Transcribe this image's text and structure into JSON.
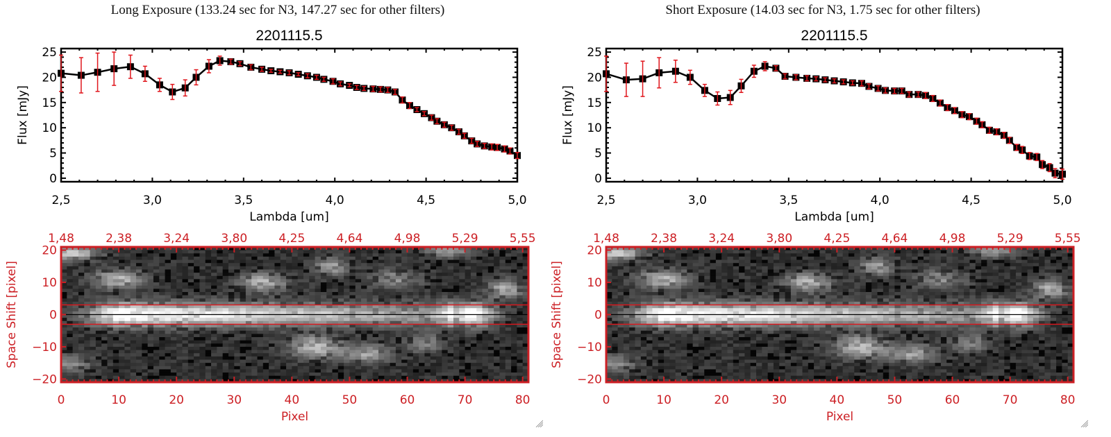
{
  "panels": [
    {
      "id": "long",
      "exposure_title": "Long Exposure (133.24 sec for N3, 147.27 sec for other filters)",
      "spectrum": {
        "title": "2201115.5",
        "xlabel": "Lambda [um]",
        "ylabel": "Flux [mJy]"
      },
      "image": {
        "xlabel": "Pixel",
        "ylabel": "Space Shift [pixel]"
      }
    },
    {
      "id": "short",
      "exposure_title": "Short Exposure (14.03 sec for N3, 1.75 sec for other filters)",
      "spectrum": {
        "title": "2201115.5",
        "xlabel": "Lambda [um]",
        "ylabel": "Flux [mJy]"
      },
      "image": {
        "xlabel": "Pixel",
        "ylabel": "Space Shift [pixel]"
      }
    }
  ],
  "colors": {
    "axis": "#000000",
    "errorbar": "#e0151b",
    "image_axis": "#cc1f24",
    "aperture_line": "#e0151b",
    "center_line": "#000000"
  },
  "chart_data": [
    {
      "type": "line",
      "title": "2201115.5",
      "panel": "Long Exposure (133.24 sec for N3, 147.27 sec for other filters)",
      "xlabel": "Lambda [um]",
      "ylabel": "Flux [mJy]",
      "xlim": [
        2.5,
        5.0
      ],
      "ylim": [
        -1,
        25.5
      ],
      "xticks": [
        "2.5",
        "3.0",
        "3.5",
        "4.0",
        "4.5",
        "5.0"
      ],
      "yticks": [
        "0",
        "5",
        "10",
        "15",
        "20",
        "25"
      ],
      "grid": false,
      "series": [
        {
          "name": "flux",
          "x": [
            2.5,
            2.61,
            2.7,
            2.79,
            2.88,
            2.96,
            3.04,
            3.11,
            3.18,
            3.24,
            3.31,
            3.37,
            3.43,
            3.48,
            3.54,
            3.6,
            3.65,
            3.7,
            3.75,
            3.8,
            3.85,
            3.9,
            3.94,
            3.99,
            4.03,
            4.08,
            4.12,
            4.16,
            4.21,
            4.25,
            4.29,
            4.33,
            4.37,
            4.41,
            4.45,
            4.49,
            4.53,
            4.56,
            4.6,
            4.64,
            4.68,
            4.71,
            4.75,
            4.78,
            4.82,
            4.86,
            4.89,
            4.93,
            4.96,
            5.0
          ],
          "y": [
            20.8,
            20.4,
            21.0,
            21.7,
            22.1,
            20.7,
            18.5,
            17.1,
            17.9,
            20.0,
            22.2,
            23.3,
            23.1,
            22.7,
            22.0,
            21.6,
            21.3,
            21.1,
            20.9,
            20.6,
            20.3,
            20.0,
            19.6,
            19.2,
            18.7,
            18.4,
            18.0,
            17.8,
            17.7,
            17.6,
            17.5,
            17.1,
            15.5,
            14.4,
            13.6,
            12.8,
            12.0,
            11.3,
            10.6,
            10.0,
            9.2,
            8.4,
            7.4,
            6.8,
            6.4,
            6.2,
            6.1,
            5.8,
            5.4,
            4.5
          ],
          "yerr": [
            3.6,
            3.5,
            3.8,
            3.3,
            2.3,
            1.5,
            1.3,
            1.5,
            1.6,
            1.5,
            1.3,
            0.9,
            0.5,
            0.4,
            0.5,
            0.4,
            0.3,
            0.3,
            0.4,
            0.3,
            0.4,
            0.4,
            0.4,
            0.5,
            0.4,
            0.3,
            0.4,
            0.4,
            0.5,
            0.5,
            0.5,
            0.5,
            0.6,
            0.6,
            0.4,
            0.4,
            0.5,
            0.5,
            0.5,
            0.5,
            0.5,
            0.5,
            0.5,
            0.5,
            0.5,
            0.6,
            0.6,
            0.6,
            0.6,
            0.6
          ]
        }
      ]
    },
    {
      "type": "line",
      "title": "2201115.5",
      "panel": "Short Exposure (14.03 sec for N3, 1.75 sec for other filters)",
      "xlabel": "Lambda [um]",
      "ylabel": "Flux [mJy]",
      "xlim": [
        2.5,
        5.0
      ],
      "ylim": [
        -1,
        25.5
      ],
      "xticks": [
        "2.5",
        "3.0",
        "3.5",
        "4.0",
        "4.5",
        "5.0"
      ],
      "yticks": [
        "0",
        "5",
        "10",
        "15",
        "20",
        "25"
      ],
      "grid": false,
      "series": [
        {
          "name": "flux",
          "x": [
            2.5,
            2.61,
            2.7,
            2.79,
            2.88,
            2.96,
            3.04,
            3.11,
            3.18,
            3.24,
            3.31,
            3.37,
            3.43,
            3.48,
            3.54,
            3.6,
            3.65,
            3.7,
            3.75,
            3.8,
            3.85,
            3.9,
            3.94,
            3.99,
            4.03,
            4.08,
            4.12,
            4.16,
            4.21,
            4.25,
            4.29,
            4.33,
            4.37,
            4.41,
            4.45,
            4.49,
            4.53,
            4.56,
            4.6,
            4.64,
            4.68,
            4.71,
            4.75,
            4.78,
            4.82,
            4.86,
            4.89,
            4.93,
            4.96,
            5.0
          ],
          "y": [
            20.7,
            19.5,
            19.7,
            20.9,
            21.2,
            20.0,
            17.4,
            15.8,
            16.0,
            18.3,
            21.2,
            22.2,
            21.8,
            20.2,
            20.0,
            19.8,
            19.7,
            19.5,
            19.3,
            19.1,
            18.9,
            18.8,
            18.2,
            17.8,
            17.4,
            17.3,
            17.3,
            16.6,
            16.6,
            16.4,
            15.8,
            14.9,
            14.0,
            13.4,
            12.6,
            12.2,
            11.3,
            10.6,
            9.5,
            9.2,
            8.5,
            7.5,
            6.1,
            5.6,
            4.4,
            4.2,
            2.7,
            2.1,
            1.0,
            0.8
          ],
          "yerr": [
            3.5,
            3.3,
            3.5,
            3.0,
            2.2,
            1.4,
            1.2,
            1.3,
            1.4,
            1.3,
            1.2,
            0.9,
            0.5,
            0.5,
            0.5,
            0.5,
            0.4,
            0.4,
            0.4,
            0.4,
            0.4,
            0.5,
            0.5,
            0.5,
            0.5,
            0.5,
            0.5,
            0.5,
            0.5,
            0.6,
            0.6,
            0.6,
            0.6,
            0.6,
            0.6,
            0.6,
            0.6,
            0.6,
            0.6,
            0.6,
            0.6,
            0.6,
            0.6,
            0.7,
            0.7,
            0.7,
            0.8,
            0.8,
            0.9,
            1.0
          ]
        }
      ]
    },
    {
      "type": "heatmap",
      "title": "",
      "xlabel": "Pixel",
      "ylabel": "Space Shift [pixel]",
      "xlim": [
        0,
        81
      ],
      "ylim": [
        -21,
        21
      ],
      "xticks": [
        "0",
        "10",
        "20",
        "30",
        "40",
        "50",
        "60",
        "70",
        "80"
      ],
      "yticks": [
        "-20",
        "-10",
        "0",
        "10",
        "20"
      ],
      "top_xticks": [
        "1.48",
        "2.38",
        "3.24",
        "3.80",
        "4.25",
        "4.64",
        "4.98",
        "5.29",
        "5.55"
      ],
      "aperture_lines": [
        3,
        -3
      ],
      "center_line": 0,
      "sources": [
        {
          "x": 12,
          "y": 0,
          "peak": 1.0,
          "sx": 5,
          "sy": 2.5,
          "tail_to": 68
        },
        {
          "x": 71,
          "y": 0,
          "peak": 0.9,
          "sx": 3,
          "sy": 2.5
        },
        {
          "x": 10,
          "y": 11,
          "peak": 0.55,
          "sx": 3,
          "sy": 2
        },
        {
          "x": 35,
          "y": 10,
          "peak": 0.5,
          "sx": 3,
          "sy": 2
        },
        {
          "x": 47,
          "y": 15,
          "peak": 0.45,
          "sx": 2,
          "sy": 2
        },
        {
          "x": 58,
          "y": 11,
          "peak": 0.35,
          "sx": 3,
          "sy": 2
        },
        {
          "x": 77,
          "y": 8,
          "peak": 0.55,
          "sx": 2,
          "sy": 2
        },
        {
          "x": 2,
          "y": 19,
          "peak": 0.6,
          "sx": 3,
          "sy": 1.5
        },
        {
          "x": 67,
          "y": 20,
          "peak": 0.4,
          "sx": 3,
          "sy": 1.5
        },
        {
          "x": 44,
          "y": -10,
          "peak": 0.55,
          "sx": 3,
          "sy": 2.5
        },
        {
          "x": 53,
          "y": -12,
          "peak": 0.45,
          "sx": 3,
          "sy": 2
        },
        {
          "x": 63,
          "y": -9,
          "peak": 0.35,
          "sx": 2,
          "sy": 2
        },
        {
          "x": 1,
          "y": -15,
          "peak": 0.35,
          "sx": 3,
          "sy": 2
        }
      ],
      "shown_in": [
        "Long Exposure",
        "Short Exposure"
      ]
    }
  ]
}
